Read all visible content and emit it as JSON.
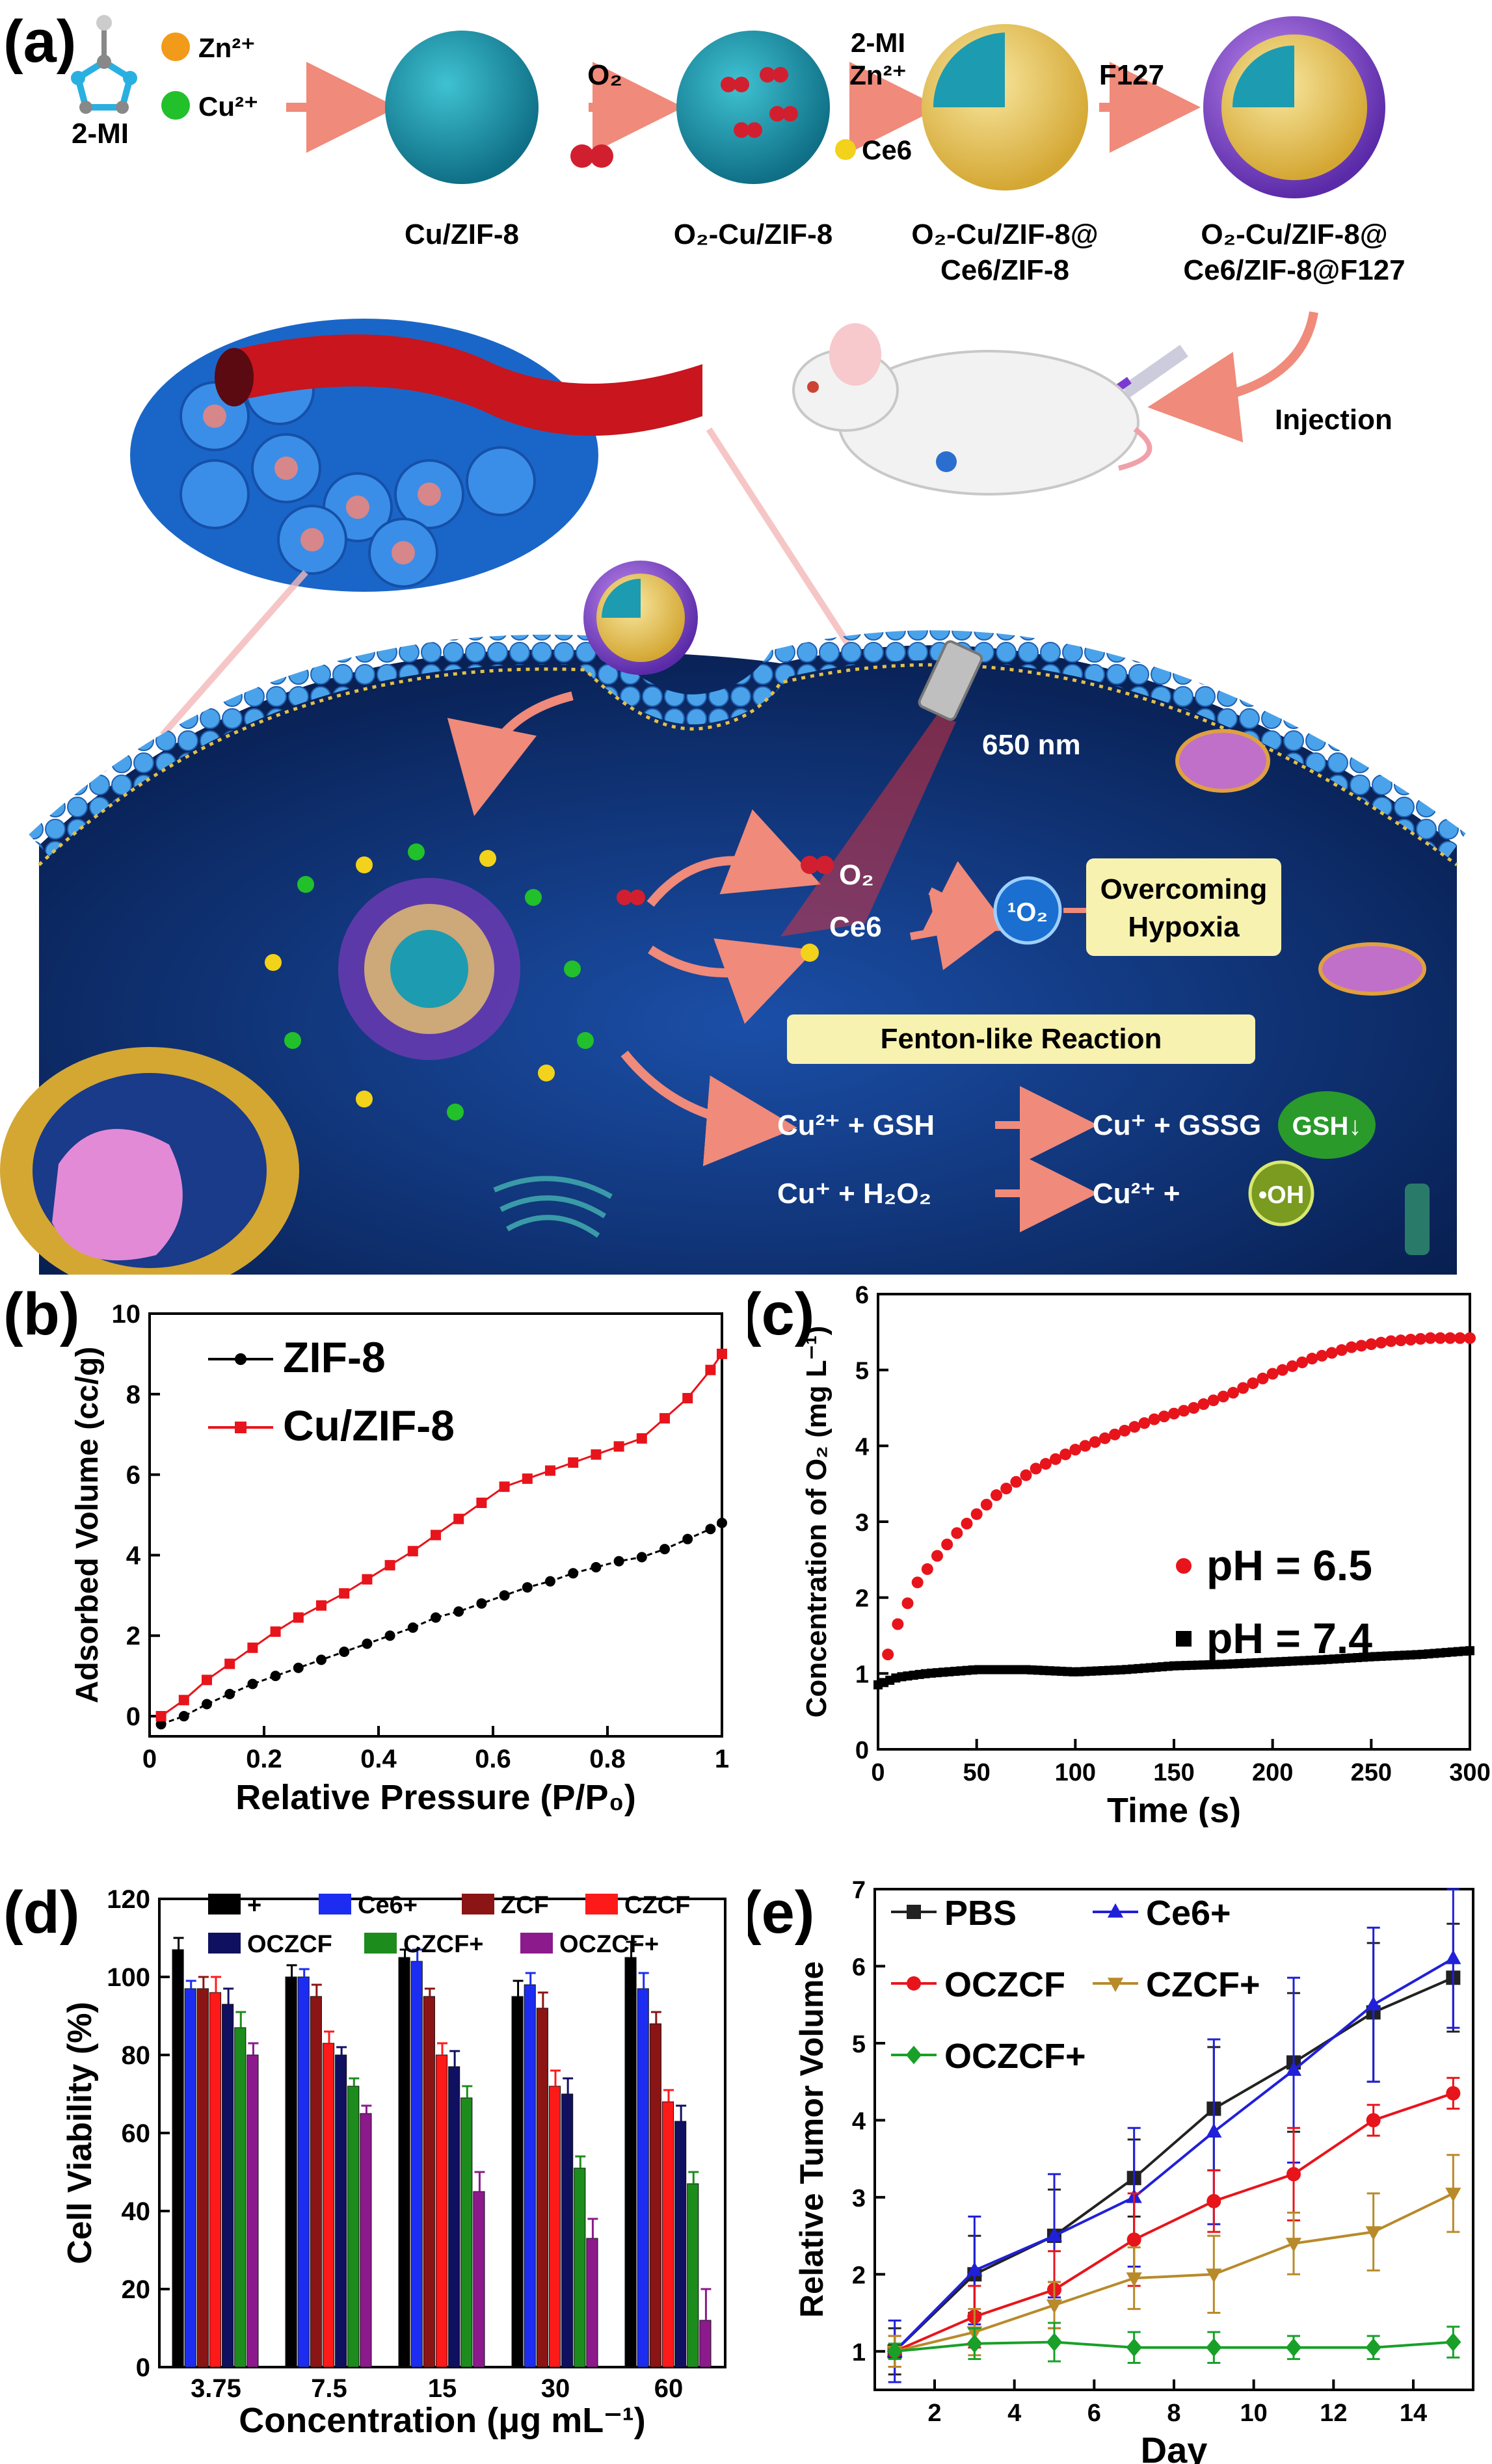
{
  "panel_labels": [
    "(a)",
    "(b)",
    "(c)",
    "(d)",
    "(e)"
  ],
  "schematic": {
    "reagents": {
      "ligand": "2-MI",
      "zn": "Zn²⁺",
      "cu": "Cu²⁺"
    },
    "steps": [
      {
        "arrow": "",
        "product": "Cu/ZIF-8"
      },
      {
        "arrow": "O₂",
        "product": "O₂-Cu/ZIF-8"
      },
      {
        "arrow_lines": [
          "2-MI",
          "Zn²⁺",
          "Ce6"
        ],
        "product_lines": [
          "O₂-Cu/ZIF-8@",
          "Ce6/ZIF-8"
        ]
      },
      {
        "arrow": "F127",
        "product_lines": [
          "O₂-Cu/ZIF-8@",
          "Ce6/ZIF-8@F127"
        ]
      }
    ],
    "injection": "Injection",
    "laser": "650 nm",
    "o2_label": "O₂",
    "ce6_label": "Ce6",
    "singlet_oxygen": "¹O₂",
    "hypoxia_lines": [
      "Overcoming",
      "Hypoxia"
    ],
    "fenton_title": "Fenton-like Reaction",
    "reaction1": {
      "left": "Cu²⁺ + GSH",
      "right": "Cu⁺ + GSSG",
      "badge": "GSH↓"
    },
    "reaction2": {
      "left": "Cu⁺ + H₂O₂",
      "right": "Cu²⁺ +",
      "badge": "•OH"
    },
    "colors": {
      "membrane": "#2f7fd0",
      "cytoplasm": "#0b2a6b",
      "arrow": "#f08a7a",
      "shell": "#8a4fd0",
      "core": "#1d9bb0",
      "o2": "#d21f2f",
      "ce6": "#f2d21a",
      "cu": "#2cc02c",
      "fenton_box": "#f7f2b0"
    }
  },
  "chart_data": [
    {
      "panel": "b",
      "type": "line",
      "xlabel": "Relative Pressure (P/P₀)",
      "ylabel": "Adsorbed Volume (cc/g)",
      "xlim": [
        0,
        1.0
      ],
      "ylim": [
        -0.5,
        10
      ],
      "xticks": [
        0.0,
        0.2,
        0.4,
        0.6,
        0.8,
        1.0
      ],
      "yticks": [
        0,
        2,
        4,
        6,
        8,
        10
      ],
      "series": [
        {
          "name": "ZIF-8",
          "color": "#000000",
          "marker": "circle",
          "x": [
            0.02,
            0.06,
            0.1,
            0.14,
            0.18,
            0.22,
            0.26,
            0.3,
            0.34,
            0.38,
            0.42,
            0.46,
            0.5,
            0.54,
            0.58,
            0.62,
            0.66,
            0.7,
            0.74,
            0.78,
            0.82,
            0.86,
            0.9,
            0.94,
            0.98,
            1.0
          ],
          "y": [
            -0.2,
            0.0,
            0.3,
            0.55,
            0.8,
            1.0,
            1.2,
            1.4,
            1.6,
            1.8,
            2.0,
            2.2,
            2.45,
            2.6,
            2.8,
            3.0,
            3.2,
            3.35,
            3.55,
            3.7,
            3.85,
            3.95,
            4.15,
            4.4,
            4.65,
            4.8
          ]
        },
        {
          "name": "Cu/ZIF-8",
          "color": "#e8141b",
          "marker": "square",
          "x": [
            0.02,
            0.06,
            0.1,
            0.14,
            0.18,
            0.22,
            0.26,
            0.3,
            0.34,
            0.38,
            0.42,
            0.46,
            0.5,
            0.54,
            0.58,
            0.62,
            0.66,
            0.7,
            0.74,
            0.78,
            0.82,
            0.86,
            0.9,
            0.94,
            0.98,
            1.0
          ],
          "y": [
            0.0,
            0.4,
            0.9,
            1.3,
            1.7,
            2.1,
            2.45,
            2.75,
            3.05,
            3.4,
            3.75,
            4.1,
            4.5,
            4.9,
            5.3,
            5.7,
            5.9,
            6.1,
            6.3,
            6.5,
            6.7,
            6.9,
            7.4,
            7.9,
            8.6,
            9.0
          ]
        }
      ]
    },
    {
      "panel": "c",
      "type": "scatter",
      "xlabel": "Time (s)",
      "ylabel": "Concentration of O₂ (mg L⁻¹)",
      "xlim": [
        0,
        300
      ],
      "ylim": [
        0,
        6
      ],
      "xticks": [
        0,
        50,
        100,
        150,
        200,
        250,
        300
      ],
      "yticks": [
        0,
        1,
        2,
        3,
        4,
        5,
        6
      ],
      "series": [
        {
          "name": "pH = 6.5",
          "color": "#e8141b",
          "marker": "circle",
          "x": [
            5,
            10,
            20,
            30,
            40,
            50,
            60,
            80,
            100,
            120,
            140,
            160,
            180,
            200,
            220,
            240,
            260,
            280,
            300
          ],
          "y": [
            1.25,
            1.65,
            2.2,
            2.55,
            2.85,
            3.1,
            3.35,
            3.7,
            3.95,
            4.15,
            4.35,
            4.5,
            4.7,
            4.95,
            5.15,
            5.3,
            5.38,
            5.42,
            5.42
          ]
        },
        {
          "name": "pH = 7.4",
          "color": "#000000",
          "marker": "square",
          "x": [
            0,
            10,
            25,
            50,
            75,
            100,
            125,
            150,
            175,
            200,
            225,
            250,
            275,
            300
          ],
          "y": [
            0.85,
            0.95,
            1.0,
            1.05,
            1.05,
            1.02,
            1.05,
            1.1,
            1.12,
            1.15,
            1.18,
            1.22,
            1.25,
            1.3
          ]
        }
      ]
    },
    {
      "panel": "d",
      "type": "bar",
      "xlabel": "Concentration (μg mL⁻¹)",
      "ylabel": "Cell Viability (%)",
      "ylim": [
        0,
        120
      ],
      "yticks": [
        0,
        20,
        40,
        60,
        80,
        100,
        120
      ],
      "categories": [
        "3.75",
        "7.5",
        "15",
        "30",
        "60"
      ],
      "series": [
        {
          "name": "+",
          "color": "#000000",
          "values": [
            107,
            100,
            105,
            95,
            105
          ],
          "errors": [
            3,
            3,
            2,
            4,
            4
          ]
        },
        {
          "name": "Ce6+",
          "color": "#1c2cf0",
          "values": [
            97,
            100,
            104,
            98,
            97
          ],
          "errors": [
            2,
            2,
            3,
            3,
            4
          ]
        },
        {
          "name": "ZCF",
          "color": "#8b1414",
          "values": [
            97,
            95,
            95,
            92,
            88
          ],
          "errors": [
            3,
            3,
            2,
            4,
            3
          ]
        },
        {
          "name": "CZCF",
          "color": "#ff1a1a",
          "values": [
            96,
            83,
            80,
            72,
            68
          ],
          "errors": [
            4,
            3,
            3,
            4,
            3
          ]
        },
        {
          "name": "OCZCF",
          "color": "#101060",
          "values": [
            93,
            80,
            77,
            70,
            63
          ],
          "errors": [
            4,
            2,
            4,
            4,
            4
          ]
        },
        {
          "name": "CZCF+",
          "color": "#1c8c1c",
          "values": [
            87,
            72,
            69,
            51,
            47
          ],
          "errors": [
            4,
            2,
            3,
            3,
            3
          ]
        },
        {
          "name": "OCZCF+",
          "color": "#8c1a8c",
          "values": [
            80,
            65,
            45,
            33,
            12
          ],
          "errors": [
            3,
            2,
            5,
            5,
            8
          ]
        }
      ]
    },
    {
      "panel": "e",
      "type": "line",
      "xlabel": "Day",
      "ylabel": "Relative Tumor Volume",
      "xlim": [
        0.5,
        15.5
      ],
      "ylim": [
        0.5,
        7
      ],
      "xticks": [
        2,
        4,
        6,
        8,
        10,
        12,
        14
      ],
      "yticks": [
        1,
        2,
        3,
        4,
        5,
        6,
        7
      ],
      "x": [
        1,
        3,
        5,
        7,
        9,
        11,
        13,
        15
      ],
      "series": [
        {
          "name": "PBS",
          "color": "#222222",
          "marker": "square",
          "values": [
            1.0,
            2.0,
            2.5,
            3.25,
            4.15,
            4.75,
            5.4,
            5.85
          ],
          "errors": [
            0.3,
            0.5,
            0.6,
            0.5,
            0.8,
            0.9,
            0.9,
            0.7
          ]
        },
        {
          "name": "Ce6+",
          "color": "#2020d8",
          "marker": "triangle",
          "values": [
            1.0,
            2.05,
            2.5,
            3.0,
            3.85,
            4.65,
            5.5,
            6.1
          ],
          "errors": [
            0.4,
            0.7,
            0.8,
            0.9,
            1.2,
            1.2,
            1.0,
            0.9
          ]
        },
        {
          "name": "OCZCF",
          "color": "#e8141b",
          "marker": "circle",
          "values": [
            1.0,
            1.45,
            1.8,
            2.45,
            2.95,
            3.3,
            4.0,
            4.35
          ],
          "errors": [
            0.2,
            0.4,
            0.5,
            0.6,
            0.4,
            0.6,
            0.2,
            0.2
          ]
        },
        {
          "name": "CZCF+",
          "color": "#b88a2a",
          "marker": "triangle-down",
          "values": [
            1.0,
            1.25,
            1.6,
            1.95,
            2.0,
            2.4,
            2.55,
            3.05
          ],
          "errors": [
            0.2,
            0.3,
            0.3,
            0.4,
            0.5,
            0.4,
            0.5,
            0.5
          ]
        },
        {
          "name": "OCZCF+",
          "color": "#18a028",
          "marker": "diamond",
          "values": [
            1.0,
            1.1,
            1.12,
            1.05,
            1.05,
            1.05,
            1.05,
            1.12
          ],
          "errors": [
            0.1,
            0.2,
            0.25,
            0.2,
            0.2,
            0.15,
            0.15,
            0.2
          ]
        }
      ]
    }
  ]
}
